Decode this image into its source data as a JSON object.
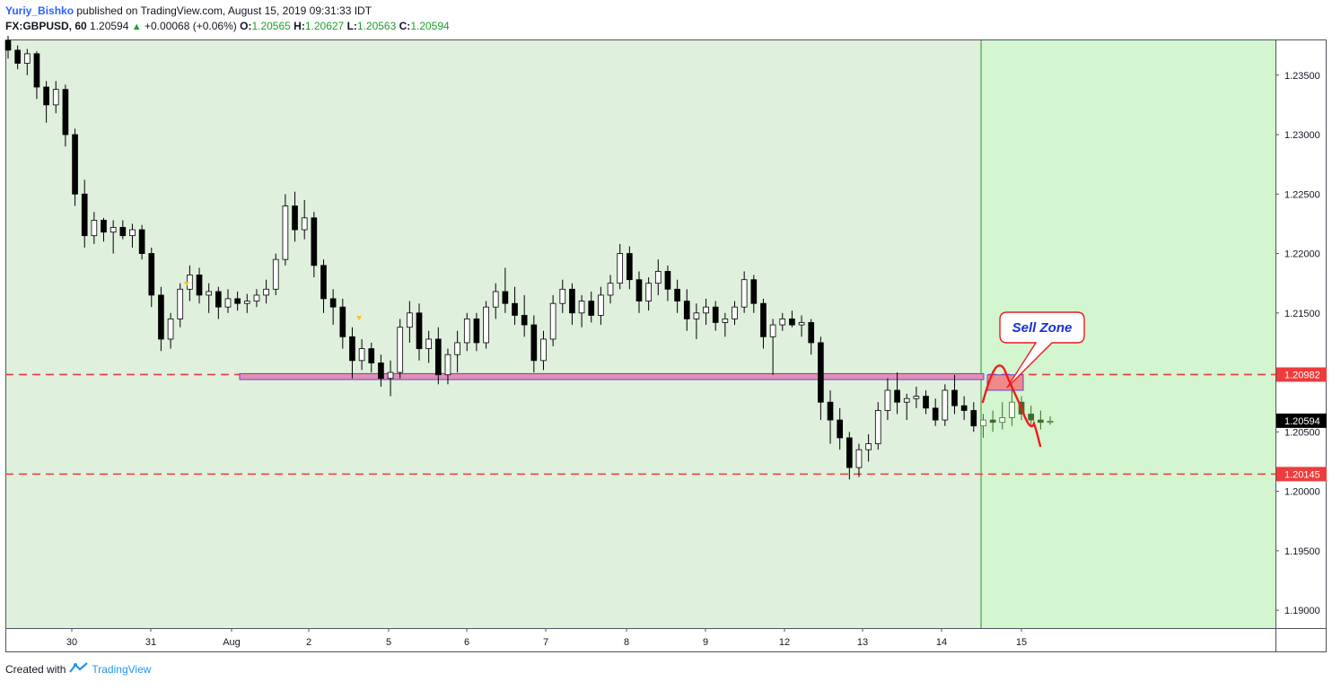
{
  "header": {
    "author": "Yuriy_Bishko",
    "published": "published on TradingView.com, August 15, 2019 09:31:33 IDT",
    "symbol": "FX:GBPUSD, 60",
    "last": "1.20594",
    "change": "+0.00068 (+0.06%)",
    "o_label": "O:",
    "o_value": "1.20565",
    "h_label": "H:",
    "h_value": "1.20627",
    "l_label": "L:",
    "l_value": "1.20563",
    "c_label": "C:",
    "c_value": "1.20594"
  },
  "footer": {
    "created_with": "Created with",
    "brand": "TradingView"
  },
  "colors": {
    "background_green": "#dff0dd",
    "projection_green": "#d3f5cf",
    "candle": "#000000",
    "level_line": "#ef3b3b",
    "rect_fill": "#f08a8a",
    "rect_border": "#6a3fd0",
    "annotation": "#ee1c1c",
    "annotation_text": "#1a2fd6"
  },
  "annotation": {
    "text": "Sell Zone"
  },
  "chart_data": {
    "type": "candlestick",
    "x_ticks": [
      "30",
      "31",
      "Aug",
      "2",
      "5",
      "6",
      "7",
      "8",
      "9",
      "12",
      "13",
      "14",
      "15"
    ],
    "y_ticks": [
      "1.23500",
      "1.23000",
      "1.22500",
      "1.22000",
      "1.21500",
      "1.21000",
      "1.20500",
      "1.20000",
      "1.19500",
      "1.19000"
    ],
    "ylim": [
      1.1885,
      1.238
    ],
    "levels": [
      {
        "value": 1.20982,
        "label": "1.20982"
      },
      {
        "value": 1.20145,
        "label": "1.20145"
      }
    ],
    "current_price": {
      "value": 1.20594,
      "label": "1.20594"
    },
    "support_zone": {
      "from": "Aug 1",
      "to": "Aug 15",
      "low": 1.2094,
      "high": 1.2099
    },
    "sell_zone": {
      "from": "Aug 14",
      "to": "Aug 15",
      "low": 1.2085,
      "high": 1.2098
    },
    "projection_starts": "Aug 14",
    "series": [
      {
        "values": [
          [
            1.2379,
            1.2383,
            1.2364,
            1.2371
          ],
          [
            1.2371,
            1.2375,
            1.2355,
            1.236
          ],
          [
            1.236,
            1.2372,
            1.235,
            1.2368
          ],
          [
            1.2368,
            1.237,
            1.233,
            1.234
          ],
          [
            1.234,
            1.2345,
            1.231,
            1.2325
          ],
          [
            1.2325,
            1.2345,
            1.2318,
            1.2338
          ],
          [
            1.2338,
            1.2342,
            1.229,
            1.23
          ],
          [
            1.23,
            1.2305,
            1.224,
            1.225
          ],
          [
            1.225,
            1.2262,
            1.2205,
            1.2215
          ],
          [
            1.2215,
            1.2235,
            1.2208,
            1.2228
          ],
          [
            1.2228,
            1.223,
            1.221,
            1.2218
          ],
          [
            1.2218,
            1.2228,
            1.22,
            1.2222
          ],
          [
            1.2222,
            1.2228,
            1.2212,
            1.2215
          ],
          [
            1.2215,
            1.2225,
            1.2205,
            1.222
          ],
          [
            1.222,
            1.2224,
            1.2195,
            1.22
          ],
          [
            1.22,
            1.2205,
            1.2155,
            1.2165
          ],
          [
            1.2165,
            1.2172,
            1.2118,
            1.2128
          ],
          [
            1.2128,
            1.215,
            1.212,
            1.2145
          ],
          [
            1.2145,
            1.2175,
            1.2138,
            1.217
          ],
          [
            1.217,
            1.219,
            1.216,
            1.2182
          ],
          [
            1.2182,
            1.2188,
            1.2158,
            1.2165
          ],
          [
            1.2165,
            1.2175,
            1.215,
            1.2168
          ],
          [
            1.2168,
            1.2172,
            1.2145,
            1.2155
          ],
          [
            1.2155,
            1.217,
            1.215,
            1.2162
          ],
          [
            1.2162,
            1.2168,
            1.2152,
            1.2158
          ],
          [
            1.2158,
            1.2166,
            1.215,
            1.216
          ],
          [
            1.216,
            1.217,
            1.2155,
            1.2165
          ],
          [
            1.2165,
            1.2178,
            1.2158,
            1.217
          ],
          [
            1.217,
            1.22,
            1.2165,
            1.2195
          ],
          [
            1.2195,
            1.225,
            1.219,
            1.224
          ],
          [
            1.224,
            1.2252,
            1.221,
            1.222
          ],
          [
            1.222,
            1.2245,
            1.2212,
            1.223
          ],
          [
            1.223,
            1.2235,
            1.218,
            1.219
          ],
          [
            1.219,
            1.2195,
            1.215,
            1.2162
          ],
          [
            1.2162,
            1.217,
            1.214,
            1.2155
          ],
          [
            1.2155,
            1.2162,
            1.212,
            1.213
          ],
          [
            1.213,
            1.2138,
            1.2095,
            1.211
          ],
          [
            1.211,
            1.2128,
            1.2102,
            1.212
          ],
          [
            1.212,
            1.2125,
            1.21,
            1.2108
          ],
          [
            1.2108,
            1.2115,
            1.2088,
            1.2095
          ],
          [
            1.2095,
            1.211,
            1.208,
            1.21
          ],
          [
            1.21,
            1.2145,
            1.2095,
            1.2138
          ],
          [
            1.2138,
            1.216,
            1.2125,
            1.215
          ],
          [
            1.215,
            1.2158,
            1.211,
            1.212
          ],
          [
            1.212,
            1.2135,
            1.2108,
            1.2128
          ],
          [
            1.2128,
            1.2138,
            1.209,
            1.2098
          ],
          [
            1.2098,
            1.212,
            1.209,
            1.2115
          ],
          [
            1.2115,
            1.2135,
            1.21,
            1.2125
          ],
          [
            1.2125,
            1.215,
            1.2118,
            1.2145
          ],
          [
            1.2145,
            1.215,
            1.2118,
            1.2125
          ],
          [
            1.2125,
            1.216,
            1.212,
            1.2155
          ],
          [
            1.2155,
            1.2175,
            1.2145,
            1.2168
          ],
          [
            1.2168,
            1.2188,
            1.215,
            1.2158
          ],
          [
            1.2158,
            1.2172,
            1.214,
            1.2148
          ],
          [
            1.2148,
            1.2165,
            1.213,
            1.214
          ],
          [
            1.214,
            1.2148,
            1.21,
            1.211
          ],
          [
            1.211,
            1.2135,
            1.2102,
            1.2128
          ],
          [
            1.2128,
            1.2165,
            1.2122,
            1.2158
          ],
          [
            1.2158,
            1.2178,
            1.215,
            1.217
          ],
          [
            1.217,
            1.2175,
            1.214,
            1.215
          ],
          [
            1.215,
            1.2165,
            1.2138,
            1.216
          ],
          [
            1.216,
            1.2168,
            1.2142,
            1.2148
          ],
          [
            1.2148,
            1.2172,
            1.214,
            1.2165
          ],
          [
            1.2165,
            1.2182,
            1.2158,
            1.2175
          ],
          [
            1.2175,
            1.2208,
            1.217,
            1.22
          ],
          [
            1.22,
            1.2206,
            1.217,
            1.2178
          ],
          [
            1.2178,
            1.2185,
            1.215,
            1.216
          ],
          [
            1.216,
            1.218,
            1.2152,
            1.2175
          ],
          [
            1.2175,
            1.2195,
            1.2165,
            1.2185
          ],
          [
            1.2185,
            1.219,
            1.216,
            1.217
          ],
          [
            1.217,
            1.2178,
            1.215,
            1.216
          ],
          [
            1.216,
            1.217,
            1.2135,
            1.2145
          ],
          [
            1.2145,
            1.2158,
            1.2128,
            1.215
          ],
          [
            1.215,
            1.2162,
            1.214,
            1.2155
          ],
          [
            1.2155,
            1.216,
            1.2135,
            1.2142
          ],
          [
            1.2142,
            1.215,
            1.213,
            1.2145
          ],
          [
            1.2145,
            1.216,
            1.214,
            1.2155
          ],
          [
            1.2155,
            1.2185,
            1.215,
            1.2178
          ],
          [
            1.2178,
            1.2182,
            1.215,
            1.2158
          ],
          [
            1.2158,
            1.2162,
            1.212,
            1.213
          ],
          [
            1.213,
            1.2145,
            1.2098,
            1.214
          ],
          [
            1.214,
            1.215,
            1.2135,
            1.2145
          ],
          [
            1.2145,
            1.2152,
            1.2138,
            1.214
          ],
          [
            1.214,
            1.2148,
            1.213,
            1.2142
          ],
          [
            1.2142,
            1.2145,
            1.2115,
            1.2125
          ],
          [
            1.2125,
            1.213,
            1.206,
            1.2075
          ],
          [
            1.2075,
            1.2085,
            1.204,
            1.206
          ],
          [
            1.206,
            1.207,
            1.2035,
            1.2045
          ],
          [
            1.2045,
            1.205,
            1.201,
            1.202
          ],
          [
            1.202,
            1.204,
            1.2012,
            1.2035
          ],
          [
            1.2035,
            1.2048,
            1.2025,
            1.204
          ],
          [
            1.204,
            1.2075,
            1.2035,
            1.2068
          ],
          [
            1.2068,
            1.2095,
            1.206,
            1.2085
          ],
          [
            1.2085,
            1.21,
            1.2065,
            1.2075
          ],
          [
            1.2075,
            1.2082,
            1.206,
            1.2078
          ],
          [
            1.2078,
            1.2088,
            1.207,
            1.208
          ],
          [
            1.208,
            1.2085,
            1.2065,
            1.207
          ],
          [
            1.207,
            1.2078,
            1.2055,
            1.206
          ],
          [
            1.206,
            1.209,
            1.2055,
            1.2085
          ],
          [
            1.2085,
            1.2098,
            1.2065,
            1.2072
          ],
          [
            1.2072,
            1.208,
            1.206,
            1.2068
          ],
          [
            1.2068,
            1.2075,
            1.205,
            1.2055
          ],
          [
            1.2055,
            1.2065,
            1.2045,
            1.206
          ],
          [
            1.206,
            1.2068,
            1.205,
            1.2058
          ],
          [
            1.2058,
            1.2075,
            1.2052,
            1.2062
          ],
          [
            1.2062,
            1.209,
            1.2055,
            1.2075
          ],
          [
            1.2075,
            1.208,
            1.206,
            1.2065
          ],
          [
            1.2065,
            1.2072,
            1.2055,
            1.206
          ],
          [
            1.206,
            1.2068,
            1.2052,
            1.2058
          ],
          [
            1.2058,
            1.2063,
            1.2056,
            1.2059
          ]
        ]
      }
    ]
  }
}
